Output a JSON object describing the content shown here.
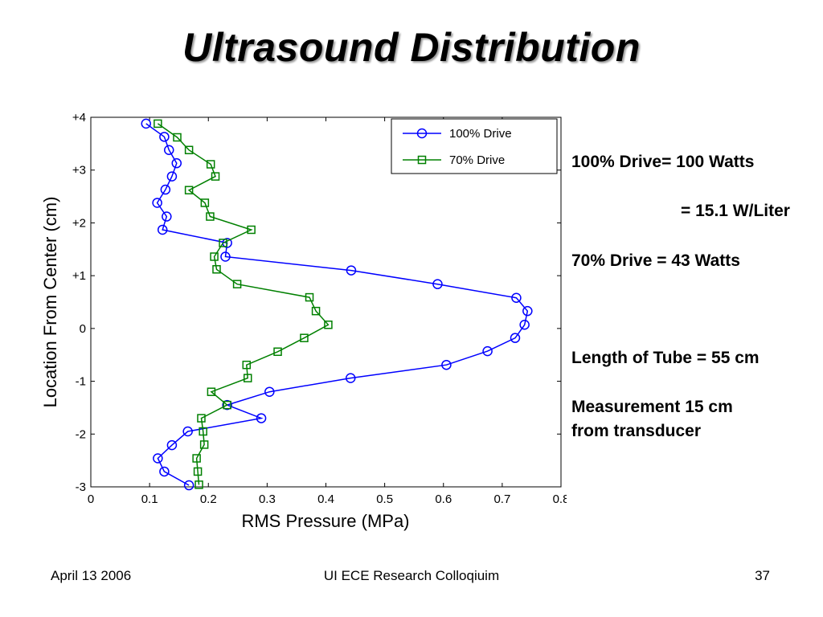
{
  "slide": {
    "title": "Ultrasound Distribution",
    "notes": [
      "100% Drive= 100 Watts",
      "=  15.1 W/Liter",
      "70% Drive = 43 Watts",
      "Length of Tube = 55 cm",
      "Measurement 15 cm",
      "from transducer"
    ],
    "footer": {
      "date": "April 13 2006",
      "event": "UI ECE Research Colloqiuim",
      "page": "37"
    }
  },
  "chart_data": {
    "type": "line",
    "title": "",
    "xlabel": "RMS Pressure (MPa)",
    "ylabel": "Location From Center (cm)",
    "xlim": [
      0,
      0.8
    ],
    "ylim": [
      -3,
      4
    ],
    "xticks": [
      0,
      0.1,
      0.2,
      0.3,
      0.4,
      0.5,
      0.6,
      0.7,
      0.8
    ],
    "xtick_labels": [
      "0",
      "0.1",
      "0.2",
      "0.3",
      "0.4",
      "0.5",
      "0.6",
      "0.7",
      "0.8"
    ],
    "yticks": [
      -3,
      -2,
      -1,
      0,
      1,
      2,
      3,
      4
    ],
    "ytick_labels": [
      "-3",
      "-2",
      "-1",
      "0",
      "+1",
      "+2",
      "+3",
      "+4"
    ],
    "grid": false,
    "legend_position": "top-right",
    "colors": {
      "100% Drive": "#0000ff",
      "70% Drive": "#008000"
    },
    "series": [
      {
        "name": "100% Drive",
        "marker": "circle",
        "x": [
          0.094,
          0.125,
          0.133,
          0.146,
          0.138,
          0.127,
          0.113,
          0.129,
          0.122,
          0.232,
          0.229,
          0.443,
          0.59,
          0.724,
          0.743,
          0.738,
          0.722,
          0.675,
          0.605,
          0.442,
          0.304,
          0.232,
          0.29,
          0.165,
          0.138,
          0.114,
          0.125,
          0.167
        ],
        "y": [
          3.88,
          3.63,
          3.38,
          3.13,
          2.88,
          2.63,
          2.38,
          2.12,
          1.87,
          1.62,
          1.36,
          1.1,
          0.84,
          0.58,
          0.33,
          0.07,
          -0.18,
          -0.43,
          -0.69,
          -0.94,
          -1.2,
          -1.45,
          -1.7,
          -1.95,
          -2.21,
          -2.46,
          -2.71,
          -2.97
        ]
      },
      {
        "name": "70% Drive",
        "marker": "square",
        "x": [
          0.114,
          0.147,
          0.167,
          0.204,
          0.212,
          0.167,
          0.194,
          0.203,
          0.273,
          0.225,
          0.21,
          0.214,
          0.249,
          0.372,
          0.383,
          0.404,
          0.363,
          0.318,
          0.265,
          0.267,
          0.205,
          0.232,
          0.188,
          0.191,
          0.193,
          0.18,
          0.182,
          0.184
        ],
        "y": [
          3.88,
          3.62,
          3.38,
          3.11,
          2.88,
          2.62,
          2.38,
          2.12,
          1.87,
          1.62,
          1.36,
          1.12,
          0.84,
          0.59,
          0.33,
          0.07,
          -0.18,
          -0.44,
          -0.69,
          -0.94,
          -1.2,
          -1.45,
          -1.7,
          -1.95,
          -2.2,
          -2.46,
          -2.71,
          -2.96
        ]
      }
    ]
  }
}
